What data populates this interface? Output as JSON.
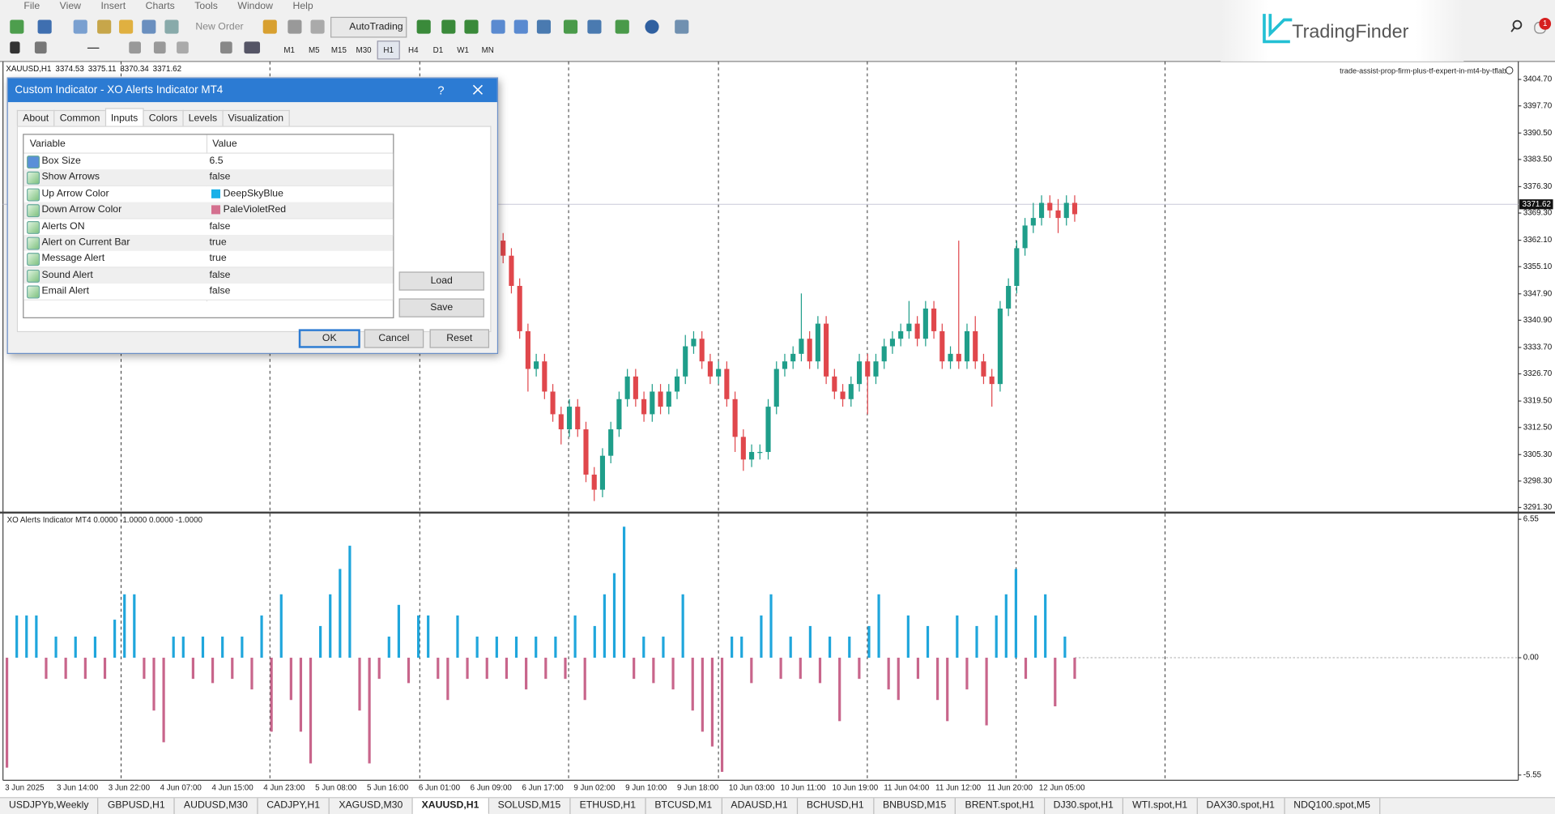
{
  "menu": [
    "File",
    "View",
    "Insert",
    "Charts",
    "Tools",
    "Window",
    "Help"
  ],
  "toolbar": {
    "new_order": "New Order",
    "auto_trading": "AutoTrading",
    "timeframes": [
      "M1",
      "M5",
      "M15",
      "M30",
      "H1",
      "H4",
      "D1",
      "W1",
      "MN"
    ],
    "active_timeframe": 4
  },
  "brand": "TradingFinder",
  "notifications": 1,
  "price_chart": {
    "type": "candlestick",
    "symbol": "XAUUSD,H1",
    "quote": [
      3374.53,
      3375.11,
      3370.34,
      3371.62
    ],
    "expert": "trade-assist-prop-firm-plus-tf-expert-in-mt4-by-tflab",
    "ylim": [
      3290.2,
      3409.2
    ],
    "yticks": [
      {
        "value": 3404.7,
        "label": "3404.70"
      },
      {
        "value": 3397.7,
        "label": "3397.70"
      },
      {
        "value": 3390.5,
        "label": "3390.50"
      },
      {
        "value": 3383.5,
        "label": "3383.50"
      },
      {
        "value": 3376.3,
        "label": "3376.30"
      },
      {
        "value": 3369.3,
        "label": "3369.30"
      },
      {
        "value": 3362.1,
        "label": "3362.10"
      },
      {
        "value": 3355.1,
        "label": "3355.10"
      },
      {
        "value": 3347.9,
        "label": "3347.90"
      },
      {
        "value": 3340.9,
        "label": "3340.90"
      },
      {
        "value": 3333.7,
        "label": "3333.70"
      },
      {
        "value": 3326.7,
        "label": "3326.70"
      },
      {
        "value": 3319.5,
        "label": "3319.50"
      },
      {
        "value": 3312.5,
        "label": "3312.50"
      },
      {
        "value": 3305.3,
        "label": "3305.30"
      },
      {
        "value": 3298.3,
        "label": "3298.30"
      },
      {
        "value": 3291.3,
        "label": "3291.30"
      }
    ],
    "current_price": 3371.62,
    "open": [
      3362,
      3358,
      3350,
      3338,
      3328,
      3330,
      3322,
      3316,
      3312,
      3318,
      3312,
      3300,
      3296,
      3305,
      3312,
      3320,
      3326,
      3320,
      3316,
      3322,
      3318,
      3322,
      3326,
      3334,
      3336,
      3330,
      3326,
      3328,
      3320,
      3310,
      3304,
      3306,
      3306,
      3318,
      3328,
      3330,
      3332,
      3336,
      3330,
      3340,
      3326,
      3322,
      3320,
      3324,
      3330,
      3326,
      3330,
      3334,
      3336,
      3338,
      3340,
      3336,
      3344,
      3338,
      3330,
      3332,
      3330,
      3338,
      3330,
      3326,
      3324,
      3344,
      3350,
      3360,
      3366,
      3368,
      3372,
      3370,
      3368,
      3372
    ],
    "high": [
      3364,
      3360,
      3352,
      3340,
      3332,
      3332,
      3324,
      3318,
      3320,
      3320,
      3314,
      3302,
      3307,
      3314,
      3322,
      3328,
      3328,
      3322,
      3324,
      3324,
      3324,
      3328,
      3337,
      3338,
      3338,
      3332,
      3330,
      3330,
      3322,
      3312,
      3308,
      3308,
      3320,
      3330,
      3332,
      3334,
      3348,
      3338,
      3342,
      3342,
      3328,
      3324,
      3326,
      3332,
      3332,
      3332,
      3336,
      3338,
      3340,
      3346,
      3342,
      3346,
      3346,
      3340,
      3334,
      3362,
      3340,
      3342,
      3332,
      3328,
      3346,
      3352,
      3362,
      3368,
      3372,
      3374,
      3374,
      3373,
      3374,
      3374
    ],
    "low": [
      3356,
      3348,
      3336,
      3322,
      3326,
      3320,
      3314,
      3308,
      3310,
      3310,
      3298,
      3293,
      3294,
      3303,
      3310,
      3318,
      3318,
      3314,
      3314,
      3316,
      3316,
      3320,
      3324,
      3332,
      3328,
      3324,
      3324,
      3318,
      3306,
      3301,
      3302,
      3304,
      3304,
      3316,
      3326,
      3328,
      3330,
      3328,
      3328,
      3324,
      3320,
      3318,
      3318,
      3322,
      3316,
      3324,
      3328,
      3332,
      3334,
      3336,
      3334,
      3334,
      3336,
      3328,
      3328,
      3328,
      3328,
      3328,
      3324,
      3318,
      3322,
      3342,
      3348,
      3358,
      3364,
      3366,
      3368,
      3364,
      3366,
      3367
    ],
    "close": [
      3358,
      3350,
      3338,
      3328,
      3330,
      3322,
      3316,
      3312,
      3318,
      3312,
      3300,
      3296,
      3305,
      3312,
      3320,
      3326,
      3320,
      3316,
      3322,
      3318,
      3322,
      3326,
      3334,
      3336,
      3330,
      3326,
      3328,
      3320,
      3310,
      3304,
      3306,
      3306,
      3318,
      3328,
      3330,
      3332,
      3336,
      3330,
      3340,
      3326,
      3322,
      3320,
      3324,
      3330,
      3326,
      3330,
      3334,
      3336,
      3338,
      3340,
      3336,
      3344,
      3338,
      3330,
      3332,
      3330,
      3338,
      3330,
      3326,
      3324,
      3344,
      3350,
      3360,
      3366,
      3368,
      3372,
      3370,
      3368,
      3372,
      3369
    ],
    "up_color": "#1f9e8a",
    "down_color": "#e0474c"
  },
  "indicator": {
    "type": "bar",
    "label": "XO Alerts Indicator MT4 0.0000 -1.0000 0.0000 -1.0000",
    "ylim": [
      -5.8,
      6.82
    ],
    "yticks": [
      6.55,
      {
        "value": 0,
        "label": "0.00"
      },
      -5.55
    ],
    "values": [
      -5.2,
      2,
      2,
      2,
      -1,
      1,
      -1,
      1,
      -1,
      1,
      -1,
      1.8,
      3,
      3,
      -1,
      -2.5,
      -4,
      1,
      1,
      -1,
      1,
      -1.2,
      1,
      -1,
      1,
      -1.5,
      2,
      -3.5,
      3,
      -2,
      -3.5,
      -5,
      1.5,
      3,
      4.2,
      5.3,
      -2.5,
      -5,
      -1,
      1,
      2.5,
      -1.2,
      2,
      2,
      -1,
      -2,
      2,
      -1,
      1,
      -1,
      1,
      -1,
      1,
      -1.5,
      1,
      -1,
      1,
      -1,
      2,
      -2,
      1.5,
      3,
      4,
      6.2,
      -1,
      1,
      -1.2,
      1,
      -1.5,
      3,
      -2.5,
      -3.5,
      -4.2,
      -5.4,
      1,
      1,
      -1.2,
      2,
      3,
      -1,
      1,
      -1,
      1.5,
      -1.2,
      1,
      -3,
      1,
      -1,
      1.5,
      3,
      -1.5,
      -2,
      2,
      -1,
      1.5,
      -2,
      -3,
      2,
      -1.5,
      1.5,
      -3.2,
      2,
      3,
      4.2,
      -1,
      2,
      3,
      -2.3,
      1,
      -1
    ],
    "up_color": "#1fa6dc",
    "down_color": "#c8658b"
  },
  "x_axis_labels": [
    "3 Jun 2025",
    "3 Jun 14:00",
    "3 Jun 22:00",
    "4 Jun 07:00",
    "4 Jun 15:00",
    "4 Jun 23:00",
    "5 Jun 08:00",
    "5 Jun 16:00",
    "6 Jun 01:00",
    "6 Jun 09:00",
    "6 Jun 17:00",
    "9 Jun 02:00",
    "9 Jun 10:00",
    "9 Jun 18:00",
    "10 Jun 03:00",
    "10 Jun 11:00",
    "10 Jun 19:00",
    "11 Jun 04:00",
    "11 Jun 12:00",
    "11 Jun 20:00",
    "12 Jun 05:00"
  ],
  "dialog": {
    "title": "Custom Indicator - XO Alerts Indicator MT4",
    "help": "?",
    "tabs": [
      "About",
      "Common",
      "Inputs",
      "Colors",
      "Levels",
      "Visualization"
    ],
    "active_tab": 2,
    "columns": [
      "Variable",
      "Value"
    ],
    "rows": [
      {
        "variable": "Box Size",
        "value": "6.5"
      },
      {
        "variable": "Show Arrows",
        "value": "false"
      },
      {
        "variable": "Up Arrow Color",
        "value": "DeepSkyBlue",
        "swatch": "#1ab0e8"
      },
      {
        "variable": "Down Arrow Color",
        "value": "PaleVioletRed",
        "swatch": "#d4708f"
      },
      {
        "variable": "Alerts ON",
        "value": "false"
      },
      {
        "variable": "Alert on Current Bar",
        "value": "true"
      },
      {
        "variable": "Message Alert",
        "value": "true"
      },
      {
        "variable": "Sound Alert",
        "value": "false"
      },
      {
        "variable": "Email Alert",
        "value": "false"
      }
    ],
    "side_buttons": [
      "Load",
      "Save"
    ],
    "buttons": [
      "OK",
      "Cancel",
      "Reset"
    ]
  },
  "symbol_tabs": [
    "USDJPYb,Weekly",
    "GBPUSD,H1",
    "AUDUSD,M30",
    "CADJPY,H1",
    "XAGUSD,M30",
    "XAUUSD,H1",
    "SOLUSD,M15",
    "ETHUSD,H1",
    "BTCUSD,M1",
    "ADAUSD,H1",
    "BCHUSD,H1",
    "BNBUSD,M15",
    "BRENT.spot,H1",
    "DJ30.spot,H1",
    "WTI.spot,H1",
    "DAX30.spot,H1",
    "NDQ100.spot,M5"
  ],
  "active_symbol_tab": 5
}
